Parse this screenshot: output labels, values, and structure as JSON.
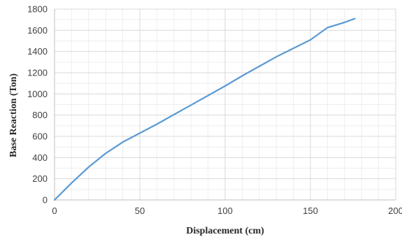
{
  "chart_data": {
    "type": "line",
    "title": "",
    "xlabel": "Displacement (cm)",
    "ylabel": "Base Reaction (Ton)",
    "xlim": [
      0,
      200
    ],
    "ylim": [
      0,
      1800
    ],
    "x_ticks": [
      0,
      50,
      100,
      150,
      200
    ],
    "y_ticks": [
      0,
      200,
      400,
      600,
      800,
      1000,
      1200,
      1400,
      1600,
      1800
    ],
    "x_tick_labels": [
      "0",
      "50",
      "100",
      "150",
      "200"
    ],
    "y_tick_labels": [
      "0",
      "200",
      "400",
      "600",
      "800",
      "1000",
      "1200",
      "1400",
      "1600",
      "1800"
    ],
    "grid": true,
    "minor_grid": true,
    "legend": "none",
    "line_color": "#5b9bd5",
    "grid_color": "#d9d9d9",
    "series": [
      {
        "x": [
          0,
          10,
          20,
          30,
          40,
          50,
          60,
          70,
          80,
          90,
          100,
          110,
          120,
          130,
          140,
          150,
          160,
          165,
          170,
          176
        ],
        "y": [
          0,
          160,
          310,
          440,
          545,
          630,
          715,
          805,
          895,
          985,
          1075,
          1170,
          1260,
          1350,
          1430,
          1510,
          1625,
          1650,
          1675,
          1710
        ]
      }
    ]
  }
}
